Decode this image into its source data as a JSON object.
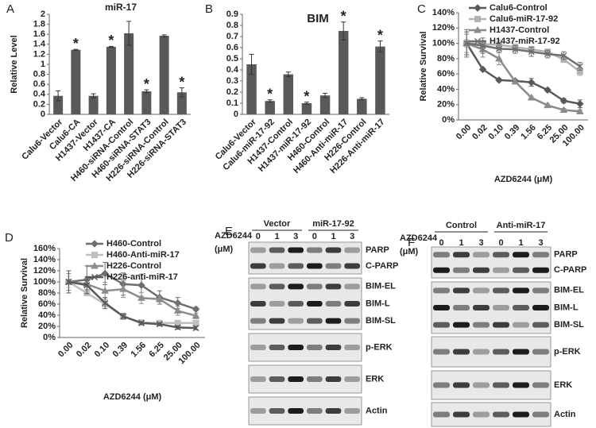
{
  "chart_data": [
    {
      "type": "bar",
      "panel": "A",
      "title": "miR-17",
      "ylabel": "Relative Level",
      "color": "#595959",
      "categories": [
        "Calu6-Vector",
        "Calu6-CA",
        "H1437-Vector",
        "H1437-CA",
        "H460-siRNA-Control",
        "H460-siRNA-STAT3",
        "H226-siRNA-Control",
        "H226-siRNA-STAT3"
      ],
      "values": [
        0.37,
        1.29,
        0.37,
        1.35,
        1.62,
        0.46,
        1.57,
        0.44
      ],
      "errors": [
        0.1,
        0.01,
        0.04,
        0.01,
        0.24,
        0.03,
        0.02,
        0.09
      ],
      "significance": [
        null,
        "*",
        null,
        "*",
        null,
        "*",
        null,
        "*"
      ],
      "ylim": [
        0,
        2
      ],
      "yticks": [
        0,
        0.2,
        0.4,
        0.6,
        0.8,
        1,
        1.2,
        1.4,
        1.6,
        1.8,
        2
      ]
    },
    {
      "type": "bar",
      "panel": "B",
      "title": "BIM",
      "color": "#595959",
      "categories": [
        "Calu6-Vector",
        "Calu6-miR-17-92",
        "H1437-Control",
        "H1437-miR-17-92",
        "H460-Control",
        "H460-Anti-miR-17",
        "H226-Control",
        "H226-Anti-miR-17"
      ],
      "values": [
        0.45,
        0.12,
        0.36,
        0.1,
        0.17,
        0.75,
        0.14,
        0.61
      ],
      "errors": [
        0.09,
        0.01,
        0.02,
        0.01,
        0.02,
        0.08,
        0.01,
        0.05
      ],
      "significance": [
        null,
        "*",
        null,
        "*",
        null,
        "*",
        null,
        "*"
      ],
      "ylim": [
        0,
        0.9
      ],
      "yticks": [
        0,
        0.1,
        0.2,
        0.3,
        0.4,
        0.5,
        0.6,
        0.7,
        0.8,
        0.9
      ]
    },
    {
      "type": "line",
      "panel": "C",
      "ylabel": "Relative Survival",
      "xlabel": "AZD6244 (μM)",
      "legend": "top-right",
      "categories": [
        "0.00",
        "0.02",
        "0.10",
        "0.39",
        "1.56",
        "6.25",
        "25.00",
        "100.00"
      ],
      "series": [
        {
          "name": "Calu6-Control",
          "color": "#595959",
          "marker": "diamond",
          "values": [
            100,
            66,
            52,
            51,
            49,
            39,
            25,
            21
          ],
          "errors": [
            15,
            2,
            2,
            2,
            5,
            2,
            3,
            5
          ]
        },
        {
          "name": "Calu6-miR-17-92",
          "color": "#b3b3b3",
          "marker": "square",
          "values": [
            100,
            99,
            98,
            95,
            92,
            89,
            79,
            63
          ],
          "errors": [
            5,
            5,
            6,
            4,
            4,
            3,
            4,
            5
          ]
        },
        {
          "name": "H1437-Control",
          "color": "#8a8a8a",
          "marker": "triangle",
          "values": [
            100,
            92,
            80,
            50,
            29,
            19,
            13,
            11
          ],
          "errors": [
            12,
            10,
            8,
            3,
            2,
            2,
            2,
            2
          ]
        },
        {
          "name": "H1437-miR-17-92",
          "color": "#6e6e6e",
          "marker": "x",
          "values": [
            100,
            97,
            93,
            92,
            89,
            86,
            84,
            70
          ],
          "errors": [
            18,
            10,
            5,
            5,
            6,
            5,
            5,
            5
          ]
        }
      ],
      "ylim": [
        0,
        140
      ],
      "yticks": [
        {
          "value": 0,
          "label": "0%"
        },
        {
          "value": 20,
          "label": "20%"
        },
        {
          "value": 40,
          "label": "40%"
        },
        {
          "value": 60,
          "label": "60%"
        },
        {
          "value": 80,
          "label": "80%"
        },
        {
          "value": 100,
          "label": "100%"
        },
        {
          "value": 120,
          "label": "120%"
        },
        {
          "value": 140,
          "label": "140%"
        }
      ]
    },
    {
      "type": "line",
      "panel": "D",
      "ylabel": "Relative Survival",
      "xlabel": "AZD6244 (μM)",
      "legend": "top-right",
      "categories": [
        "0.00",
        "0.02",
        "0.10",
        "0.39",
        "1.56",
        "6.25",
        "25.00",
        "100.00"
      ],
      "series": [
        {
          "name": "H460-Control",
          "color": "#6e6e6e",
          "marker": "diamond",
          "values": [
            100,
            104,
            115,
            96,
            94,
            72,
            62,
            51
          ],
          "errors": [
            20,
            25,
            20,
            20,
            20,
            12,
            10,
            3
          ]
        },
        {
          "name": "H460-Anti-miR-17",
          "color": "#bfbfbf",
          "marker": "square",
          "values": [
            100,
            80,
            60,
            38,
            27,
            26,
            26,
            26
          ],
          "errors": [
            10,
            5,
            5,
            5,
            3,
            3,
            3,
            3
          ]
        },
        {
          "name": "H226-Control",
          "color": "#8c8c8c",
          "marker": "triangle",
          "values": [
            100,
            96,
            84,
            87,
            71,
            69,
            48,
            39
          ],
          "errors": [
            15,
            10,
            15,
            15,
            10,
            5,
            8,
            5
          ]
        },
        {
          "name": "H226-anti-miR-17",
          "color": "#595959",
          "marker": "x",
          "values": [
            100,
            94,
            62,
            38,
            26,
            24,
            18,
            17
          ],
          "errors": [
            20,
            15,
            10,
            5,
            3,
            3,
            3,
            3
          ]
        }
      ],
      "ylim": [
        0,
        160
      ],
      "yticks": [
        {
          "value": 0,
          "label": "0%"
        },
        {
          "value": 20,
          "label": "20%"
        },
        {
          "value": 40,
          "label": "40%"
        },
        {
          "value": 60,
          "label": "60%"
        },
        {
          "value": 80,
          "label": "80%"
        },
        {
          "value": 100,
          "label": "100%"
        },
        {
          "value": 120,
          "label": "120%"
        },
        {
          "value": 140,
          "label": "140%"
        },
        {
          "value": 160,
          "label": "160%"
        }
      ]
    }
  ],
  "blots": [
    {
      "panel": "E",
      "header": [
        "AZD6244",
        "(μM)"
      ],
      "groups": [
        "Vector",
        "miR-17-92"
      ],
      "lanes": [
        "0",
        "1",
        "3",
        "0",
        "1",
        "3"
      ],
      "strips": [
        [
          "PARP",
          "C-PARP"
        ],
        [
          "BIM-EL",
          "BIM-L",
          "BIM-SL"
        ],
        [
          "p-ERK"
        ],
        [
          "ERK"
        ],
        [
          "Actin"
        ]
      ]
    },
    {
      "panel": "F",
      "header": [
        "AZD6244",
        "(μM)"
      ],
      "groups": [
        "Control",
        "Anti-miR-17"
      ],
      "lanes": [
        "0",
        "1",
        "3",
        "0",
        "1",
        "3"
      ],
      "strips": [
        [
          "PARP",
          "C-PARP"
        ],
        [
          "BIM-EL",
          "BIM-L",
          "BIM-SL"
        ],
        [
          "p-ERK"
        ],
        [
          "ERK"
        ],
        [
          "Actin"
        ]
      ]
    }
  ]
}
